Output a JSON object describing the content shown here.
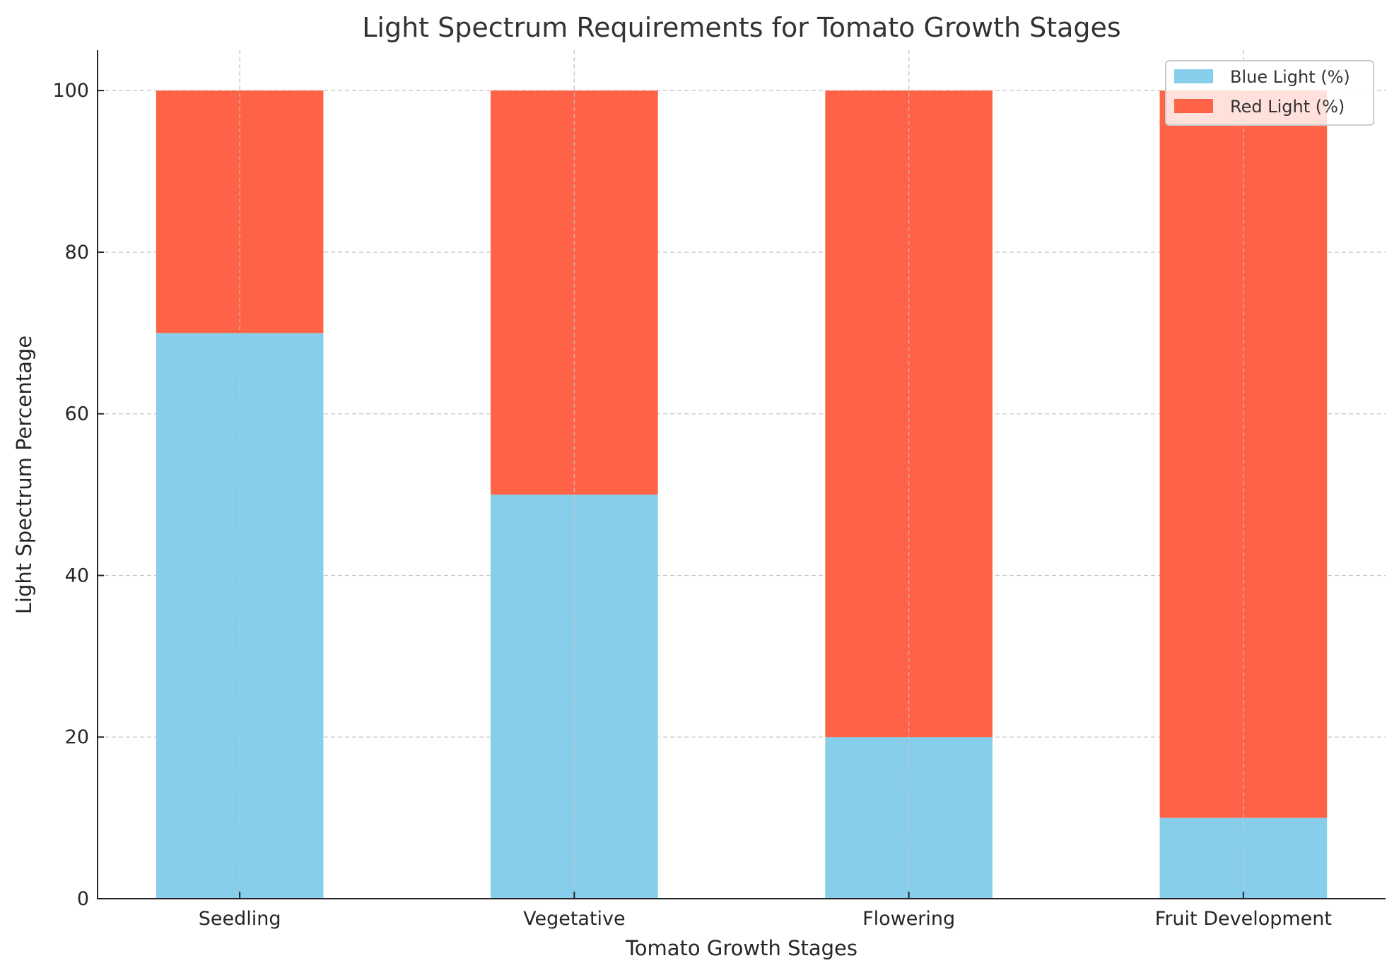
{
  "chart_data": {
    "type": "bar",
    "stacked": true,
    "title": "Light Spectrum Requirements for Tomato Growth Stages",
    "xlabel": "Tomato Growth Stages",
    "ylabel": "Light Spectrum Percentage",
    "categories": [
      "Seedling",
      "Vegetative",
      "Flowering",
      "Fruit Development"
    ],
    "series": [
      {
        "name": "Blue Light (%)",
        "values": [
          70,
          50,
          20,
          10
        ],
        "color": "#87CEEB"
      },
      {
        "name": "Red Light (%)",
        "values": [
          30,
          50,
          80,
          90
        ],
        "color": "#FF6347"
      }
    ],
    "ylim": [
      0,
      105
    ],
    "yticks": [
      0,
      20,
      40,
      60,
      80,
      100
    ],
    "grid": true,
    "legend": "top-right"
  }
}
